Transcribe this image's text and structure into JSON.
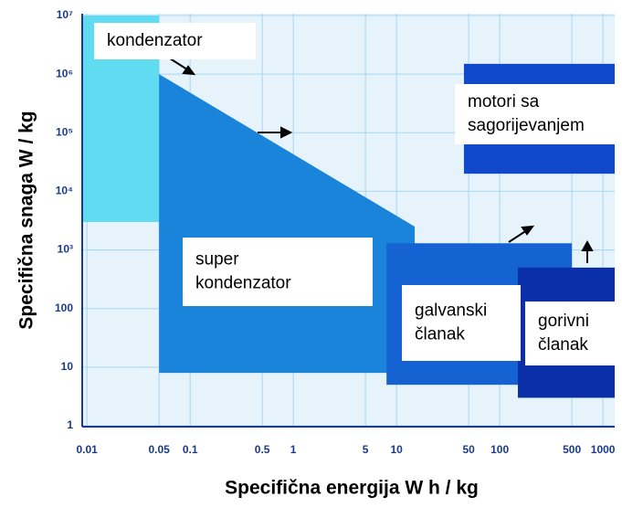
{
  "chart_data": {
    "type": "region",
    "x_label": "Specifična energija  W h / kg",
    "y_label": "Specifična snaga W  / kg",
    "log_x": true,
    "log_y": true,
    "grid": true,
    "xlim": [
      0.009,
      1300
    ],
    "ylim": [
      1,
      10000000
    ],
    "xticks": [
      0.01,
      0.05,
      0.1,
      0.5,
      1,
      5,
      10,
      50,
      100,
      500,
      1000
    ],
    "yticks": [
      1,
      10,
      100,
      {
        "value": 1000,
        "label": "10³"
      },
      {
        "value": 10000,
        "label": "10⁴"
      },
      {
        "value": 100000,
        "label": "10⁵"
      },
      {
        "value": 1000000,
        "label": "10⁶"
      },
      {
        "value": 10000000,
        "label": "10⁷"
      }
    ],
    "series": [
      {
        "label": [
          "kondenzator"
        ],
        "color": "#5fdcf2",
        "x": [
          0.009,
          0.05,
          0.05,
          0.009
        ],
        "y": [
          10000000,
          10000000,
          3000,
          3000
        ]
      },
      {
        "label": [
          "super",
          "kondenzator"
        ],
        "color": "#1a84da",
        "x": [
          0.05,
          15,
          15,
          0.05
        ],
        "y": [
          1000000,
          2500,
          8,
          8
        ]
      },
      {
        "label": [
          "motori sa",
          "sagorijevanjem"
        ],
        "color": "#1049c9",
        "x": [
          45,
          1300,
          1300,
          45
        ],
        "y": [
          1500000,
          1500000,
          20000,
          20000
        ]
      },
      {
        "label": [
          "galvanski",
          "članak"
        ],
        "color": "#1562d2",
        "x": [
          8,
          500,
          500,
          8
        ],
        "y": [
          1300,
          1300,
          5,
          5
        ]
      },
      {
        "label": [
          "gorivni",
          "članak"
        ],
        "color": "#0a2fa8",
        "x": [
          150,
          1300,
          1300,
          150
        ],
        "y": [
          500,
          500,
          3,
          3
        ]
      }
    ]
  }
}
